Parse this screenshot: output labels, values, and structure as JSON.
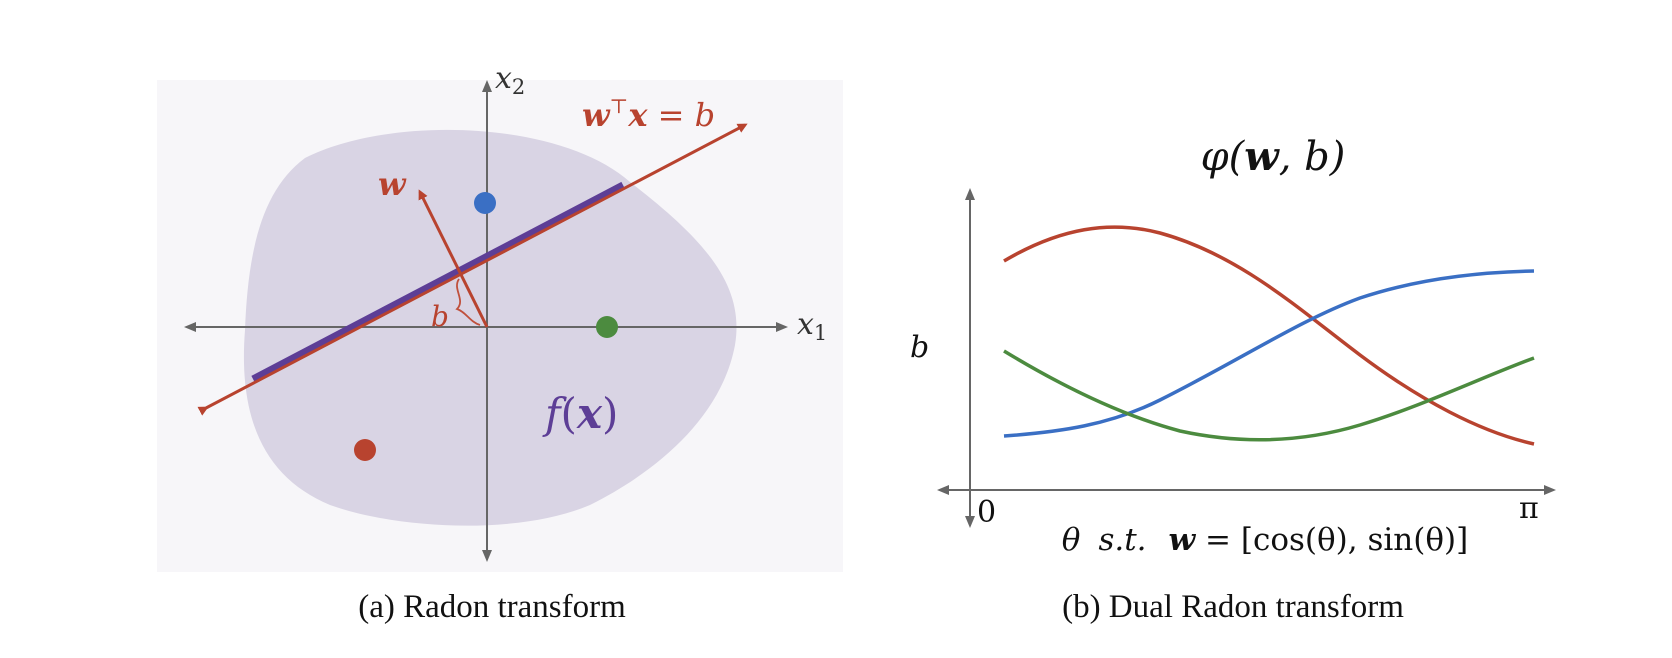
{
  "colors": {
    "red": "#b8432f",
    "blue": "#3a6fc4",
    "green": "#4c8b3f",
    "purple": "#5d3e96",
    "region": "#d9d4e4",
    "axis": "#666666"
  },
  "panel_a": {
    "caption": "(a) Radon transform",
    "axis_x1": "x",
    "axis_x1_sub": "1",
    "axis_x2": "x",
    "axis_x2_sub": "2",
    "hyperplane_w": "w",
    "hyperplane_top": "⊤",
    "hyperplane_x": "x",
    "hyperplane_rhs": " = b",
    "normal_label": "w",
    "offset_label": "b",
    "region_f": "f",
    "region_open": "(",
    "region_x": "x",
    "region_close": ")",
    "points": [
      "blue-point",
      "green-point",
      "red-point"
    ]
  },
  "panel_b": {
    "caption": "(b) Dual Radon transform",
    "title_phi": "φ(",
    "title_w": "w",
    "title_rest": ", b)",
    "ylabel": "b",
    "x_start": "0",
    "x_end": "π",
    "xlabel_theta": "θ",
    "xlabel_st": "s.t.",
    "xlabel_w": "w",
    "xlabel_rest": " = [cos(θ), sin(θ)]",
    "curves": [
      "red-curve",
      "blue-curve",
      "green-curve"
    ]
  }
}
